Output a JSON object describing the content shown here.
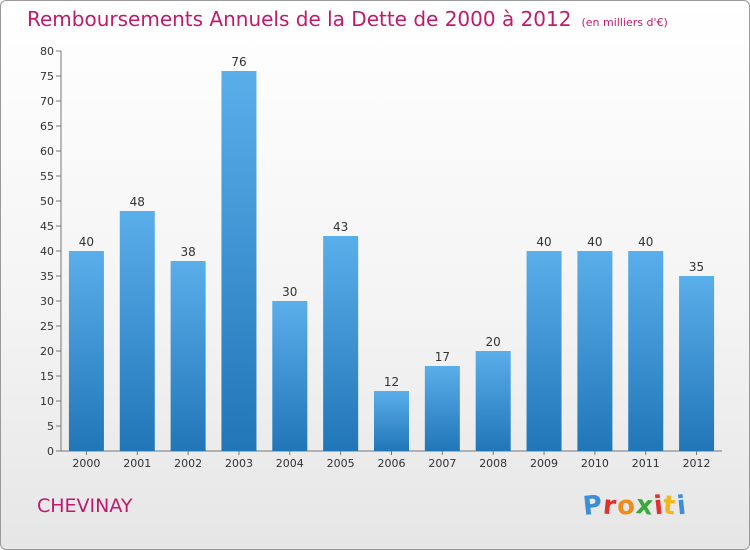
{
  "chart_data": {
    "type": "bar",
    "title": "Remboursements Annuels de la Dette de 2000 à 2012",
    "subtitle": "(en milliers d'€)",
    "xlabel": "",
    "ylabel": "",
    "categories": [
      "2000",
      "2001",
      "2002",
      "2003",
      "2004",
      "2005",
      "2006",
      "2007",
      "2008",
      "2009",
      "2010",
      "2011",
      "2012"
    ],
    "values": [
      40,
      48,
      38,
      76,
      30,
      43,
      12,
      17,
      20,
      40,
      40,
      40,
      35
    ],
    "ylim": [
      0,
      80
    ],
    "yticks": [
      0,
      5,
      10,
      15,
      20,
      25,
      30,
      35,
      40,
      45,
      50,
      55,
      60,
      65,
      70,
      75,
      80
    ],
    "grid": false,
    "data_labels": true,
    "bar_color_top": "#5aaeea",
    "bar_color_bottom": "#2176b8"
  },
  "footer": {
    "commune": "CHEVINAY",
    "brand": "Proxiti"
  },
  "colors": {
    "title": "#c01a6e",
    "brand_letters": [
      "#3a8fd8",
      "#e03030",
      "#f08a1c",
      "#3aa83a",
      "#e03030",
      "#f0b81c",
      "#3a8fd8"
    ]
  }
}
